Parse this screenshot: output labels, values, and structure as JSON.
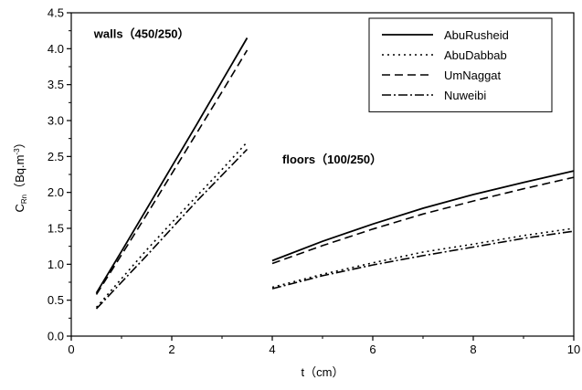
{
  "chart_data": {
    "type": "line",
    "xlabel": "t（cm）",
    "ylabel_main": "C",
    "ylabel_sub": "Rn",
    "ylabel_unit": "（Bq.m",
    "ylabel_sup": "-3",
    "ylabel_close": "）",
    "xlim": [
      0,
      10
    ],
    "ylim": [
      0,
      4.5
    ],
    "xticks": [
      0,
      2,
      4,
      6,
      8,
      10
    ],
    "yticks": [
      0.0,
      0.5,
      1.0,
      1.5,
      2.0,
      2.5,
      3.0,
      3.5,
      4.0,
      4.5
    ],
    "ytick_labels": [
      "0.0",
      "0.5",
      "1.0",
      "1.5",
      "2.0",
      "2.5",
      "3.0",
      "3.5",
      "4.0",
      "4.5"
    ],
    "legend_position": "top-right",
    "annotations": [
      {
        "text": "walls（450/250）",
        "x": 0.45,
        "y": 4.15
      },
      {
        "text": "floors（100/250）",
        "x": 4.2,
        "y": 2.4
      }
    ],
    "series": [
      {
        "name": "AbuRusheid",
        "dash": "solid",
        "segments": [
          [
            [
              0.5,
              0.6
            ],
            [
              1.0,
              1.18
            ],
            [
              1.5,
              1.77
            ],
            [
              2.0,
              2.36
            ],
            [
              2.5,
              2.95
            ],
            [
              3.0,
              3.55
            ],
            [
              3.5,
              4.15
            ]
          ],
          [
            [
              4.0,
              1.05
            ],
            [
              5.0,
              1.32
            ],
            [
              6.0,
              1.56
            ],
            [
              7.0,
              1.78
            ],
            [
              8.0,
              1.97
            ],
            [
              9.0,
              2.14
            ],
            [
              10.0,
              2.3
            ]
          ]
        ]
      },
      {
        "name": "AbuDabbab",
        "dash": "dotted",
        "segments": [
          [
            [
              0.5,
              0.4
            ],
            [
              1.0,
              0.8
            ],
            [
              1.5,
              1.2
            ],
            [
              2.0,
              1.58
            ],
            [
              2.5,
              1.95
            ],
            [
              3.0,
              2.32
            ],
            [
              3.5,
              2.7
            ]
          ],
          [
            [
              4.0,
              0.68
            ],
            [
              5.0,
              0.86
            ],
            [
              6.0,
              1.02
            ],
            [
              7.0,
              1.17
            ],
            [
              8.0,
              1.28
            ],
            [
              9.0,
              1.4
            ],
            [
              10.0,
              1.5
            ]
          ]
        ]
      },
      {
        "name": "UmNaggat",
        "dash": "dashed",
        "segments": [
          [
            [
              0.5,
              0.58
            ],
            [
              1.0,
              1.13
            ],
            [
              1.5,
              1.69
            ],
            [
              2.0,
              2.26
            ],
            [
              2.5,
              2.83
            ],
            [
              3.0,
              3.4
            ],
            [
              3.5,
              3.98
            ]
          ],
          [
            [
              4.0,
              1.01
            ],
            [
              5.0,
              1.26
            ],
            [
              6.0,
              1.49
            ],
            [
              7.0,
              1.7
            ],
            [
              8.0,
              1.88
            ],
            [
              9.0,
              2.05
            ],
            [
              10.0,
              2.21
            ]
          ]
        ]
      },
      {
        "name": "Nuweibi",
        "dash": "dashdot",
        "segments": [
          [
            [
              0.5,
              0.38
            ],
            [
              1.0,
              0.75
            ],
            [
              1.5,
              1.12
            ],
            [
              2.0,
              1.5
            ],
            [
              2.5,
              1.88
            ],
            [
              3.0,
              2.24
            ],
            [
              3.5,
              2.6
            ]
          ],
          [
            [
              4.0,
              0.66
            ],
            [
              5.0,
              0.84
            ],
            [
              6.0,
              0.99
            ],
            [
              7.0,
              1.12
            ],
            [
              8.0,
              1.24
            ],
            [
              9.0,
              1.36
            ],
            [
              10.0,
              1.46
            ]
          ]
        ]
      }
    ]
  }
}
